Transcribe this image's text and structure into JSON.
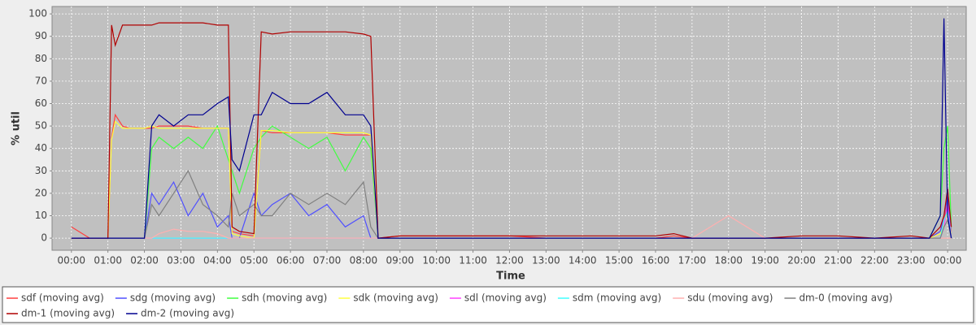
{
  "chart_data": {
    "type": "line",
    "x_label": "Time",
    "y_label": "% util",
    "x": [
      0,
      0.5,
      1.0,
      1.1,
      1.2,
      1.4,
      1.6,
      2.0,
      2.2,
      2.4,
      2.8,
      3.2,
      3.6,
      4.0,
      4.3,
      4.4,
      4.6,
      5.0,
      5.2,
      5.5,
      6.0,
      6.5,
      7.0,
      7.5,
      8.0,
      8.2,
      8.4,
      9,
      10,
      11,
      12,
      13,
      14,
      15,
      16,
      16.5,
      17,
      18,
      19,
      20,
      21,
      22,
      23,
      23.5,
      23.8,
      23.9,
      24.0,
      24.1
    ],
    "xlim": [
      -0.53,
      24.51
    ],
    "xticks": [
      {
        "value": 0,
        "label": "00:00"
      },
      {
        "value": 1,
        "label": "01:00"
      },
      {
        "value": 2,
        "label": "02:00"
      },
      {
        "value": 3,
        "label": "03:00"
      },
      {
        "value": 4,
        "label": "04:00"
      },
      {
        "value": 5,
        "label": "05:00"
      },
      {
        "value": 6,
        "label": "06:00"
      },
      {
        "value": 7,
        "label": "07:00"
      },
      {
        "value": 8,
        "label": "08:00"
      },
      {
        "value": 9,
        "label": "09:00"
      },
      {
        "value": 10,
        "label": "10:00"
      },
      {
        "value": 11,
        "label": "11:00"
      },
      {
        "value": 12,
        "label": "12:00"
      },
      {
        "value": 13,
        "label": "13:00"
      },
      {
        "value": 14,
        "label": "14:00"
      },
      {
        "value": 15,
        "label": "15:00"
      },
      {
        "value": 16,
        "label": "16:00"
      },
      {
        "value": 17,
        "label": "17:00"
      },
      {
        "value": 18,
        "label": "18:00"
      },
      {
        "value": 19,
        "label": "19:00"
      },
      {
        "value": 20,
        "label": "20:00"
      },
      {
        "value": 21,
        "label": "21:00"
      },
      {
        "value": 22,
        "label": "22:00"
      },
      {
        "value": 23,
        "label": "23:00"
      },
      {
        "value": 24,
        "label": "00:00"
      }
    ],
    "ylim": [
      -5.4,
      103.3
    ],
    "yticks": [
      0,
      10,
      20,
      30,
      40,
      50,
      60,
      70,
      80,
      90,
      100
    ],
    "grid": true,
    "series": [
      {
        "name": "sdf (moving avg)",
        "color": "#ff4040",
        "values": [
          5,
          0,
          0,
          45,
          55,
          50,
          49,
          49,
          49,
          50,
          50,
          50,
          49,
          49,
          49,
          3,
          2,
          1,
          48,
          47,
          47,
          47,
          47,
          46,
          46,
          46,
          0,
          1,
          1,
          1,
          1,
          0,
          0,
          0,
          0,
          1,
          0,
          0,
          0,
          0,
          0,
          0,
          0,
          0,
          3,
          8,
          15,
          3
        ]
      },
      {
        "name": "sdg (moving avg)",
        "color": "#5050ff",
        "values": [
          0,
          0,
          0,
          0,
          0,
          0,
          0,
          0,
          20,
          15,
          25,
          10,
          20,
          5,
          10,
          0,
          0,
          20,
          10,
          15,
          20,
          10,
          15,
          5,
          10,
          0,
          0,
          0,
          0,
          0,
          0,
          0,
          0,
          0,
          0,
          0,
          0,
          0,
          0,
          0,
          0,
          0,
          0,
          0,
          3,
          10,
          18,
          2
        ]
      },
      {
        "name": "sdh (moving avg)",
        "color": "#40ff40",
        "values": [
          0,
          0,
          0,
          0,
          0,
          0,
          0,
          0,
          40,
          45,
          40,
          45,
          40,
          50,
          35,
          30,
          20,
          40,
          45,
          50,
          45,
          40,
          45,
          30,
          45,
          40,
          0,
          0,
          0,
          0,
          0,
          0,
          0,
          0,
          0,
          0,
          0,
          0,
          0,
          0,
          0,
          0,
          0,
          0,
          10,
          40,
          50,
          5
        ]
      },
      {
        "name": "sdk (moving avg)",
        "color": "#ffff40",
        "values": [
          0,
          0,
          0,
          44,
          52,
          49,
          49,
          49,
          50,
          49,
          49,
          49,
          49,
          49,
          49,
          2,
          1,
          0,
          48,
          48,
          47,
          47,
          47,
          47,
          47,
          46,
          0,
          0,
          0,
          0,
          0,
          0,
          0,
          0,
          0,
          0,
          0,
          0,
          0,
          0,
          0,
          0,
          0,
          0,
          2,
          6,
          12,
          2
        ]
      },
      {
        "name": "sdl (moving avg)",
        "color": "#ff40ff",
        "values": [
          0,
          0,
          0,
          0,
          0,
          0,
          0,
          0,
          0,
          0,
          0,
          0,
          0,
          0,
          0,
          0,
          0,
          0,
          0,
          0,
          0,
          0,
          0,
          0,
          0,
          0,
          0,
          0,
          0,
          0,
          0,
          0,
          0,
          0,
          0,
          0,
          0,
          0,
          0,
          0,
          0,
          0,
          0,
          0,
          0,
          5,
          15,
          0
        ]
      },
      {
        "name": "sdm (moving avg)",
        "color": "#40ffff",
        "values": [
          0,
          0,
          0,
          0,
          0,
          0,
          0,
          0,
          0,
          0,
          0,
          0,
          0,
          0,
          0,
          0,
          0,
          0,
          0,
          0,
          0,
          0,
          0,
          0,
          0,
          0,
          0,
          0,
          0,
          0,
          0,
          0,
          0,
          0,
          0,
          0,
          0,
          0,
          0,
          0,
          0,
          0,
          0,
          0,
          0,
          8,
          12,
          0
        ]
      },
      {
        "name": "sdu (moving avg)",
        "color": "#ffb0b0",
        "values": [
          0,
          0,
          0,
          0,
          0,
          0,
          0,
          0,
          0,
          2,
          4,
          3,
          3,
          2,
          0,
          0,
          0,
          0,
          0,
          0,
          0,
          0,
          0,
          0,
          0,
          0,
          0,
          0,
          0,
          0,
          0,
          0,
          0,
          0,
          0,
          0,
          0,
          10,
          0,
          0,
          0,
          0,
          0,
          0,
          0,
          0,
          0,
          0
        ]
      },
      {
        "name": "dm-0 (moving avg)",
        "color": "#808080",
        "values": [
          0,
          0,
          0,
          0,
          0,
          0,
          0,
          0,
          15,
          10,
          20,
          30,
          15,
          10,
          5,
          20,
          10,
          15,
          10,
          10,
          20,
          15,
          20,
          15,
          25,
          5,
          0,
          0,
          0,
          0,
          0,
          0,
          0,
          0,
          0,
          0,
          0,
          0,
          0,
          0,
          0,
          0,
          0,
          0,
          0,
          5,
          8,
          0
        ]
      },
      {
        "name": "dm-1 (moving avg)",
        "color": "#b00000",
        "values": [
          0,
          0,
          0,
          95,
          86,
          95,
          95,
          95,
          95,
          96,
          96,
          96,
          96,
          95,
          95,
          5,
          3,
          2,
          92,
          91,
          92,
          92,
          92,
          92,
          91,
          90,
          0,
          1,
          1,
          1,
          1,
          1,
          1,
          1,
          1,
          2,
          0,
          0,
          0,
          1,
          1,
          0,
          1,
          0,
          5,
          10,
          22,
          5
        ]
      },
      {
        "name": "dm-2 (moving avg)",
        "color": "#000090",
        "values": [
          0,
          0,
          0,
          0,
          0,
          0,
          0,
          0,
          50,
          55,
          50,
          55,
          55,
          60,
          63,
          35,
          30,
          55,
          55,
          65,
          60,
          60,
          65,
          55,
          55,
          50,
          0,
          0,
          0,
          0,
          0,
          0,
          0,
          0,
          0,
          0,
          0,
          0,
          0,
          0,
          0,
          0,
          0,
          0,
          10,
          98,
          10,
          0
        ]
      }
    ]
  }
}
